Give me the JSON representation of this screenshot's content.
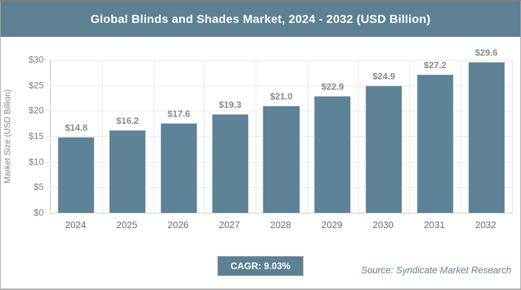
{
  "header": {
    "title": "Global Blinds and Shades Market, 2024 - 2032 (USD Billion)"
  },
  "chart_data": {
    "type": "bar",
    "title": "Global Blinds and Shades Market, 2024 - 2032 (USD Billion)",
    "categories": [
      "2024",
      "2025",
      "2026",
      "2027",
      "2028",
      "2029",
      "2030",
      "2031",
      "2032"
    ],
    "values": [
      14.8,
      16.2,
      17.6,
      19.3,
      21.0,
      22.9,
      24.9,
      27.2,
      29.6
    ],
    "value_labels": [
      "$14.8",
      "$16.2",
      "$17.6",
      "$19.3",
      "$21.0",
      "$22.9",
      "$24.9",
      "$27.2",
      "$29.6"
    ],
    "xlabel": "",
    "ylabel": "Market Size (USD Billion)",
    "ylim": [
      0,
      30
    ],
    "y_tick_step": 5,
    "y_ticks": [
      {
        "value": 0,
        "label": "$0"
      },
      {
        "value": 5,
        "label": "$5"
      },
      {
        "value": 10,
        "label": "$10"
      },
      {
        "value": 15,
        "label": "$15"
      },
      {
        "value": 20,
        "label": "$20"
      },
      {
        "value": 25,
        "label": "$25"
      },
      {
        "value": 30,
        "label": "$30"
      }
    ],
    "grid": true,
    "legend_position": "none",
    "bar_color": "#5e8296"
  },
  "footer": {
    "cagr_label": "CAGR: 9.03%",
    "source": "Source: Syndicate Market Research"
  },
  "colors": {
    "accent": "#5d8093",
    "bar": "#5e8296",
    "grid": "#e7e7e7",
    "axis_line": "#c6c6c6",
    "tick_text": "#7c7c7c",
    "value_label_text": "#8a8a8a",
    "x_label_text": "#6b6b6b",
    "source_text": "#64808d"
  }
}
